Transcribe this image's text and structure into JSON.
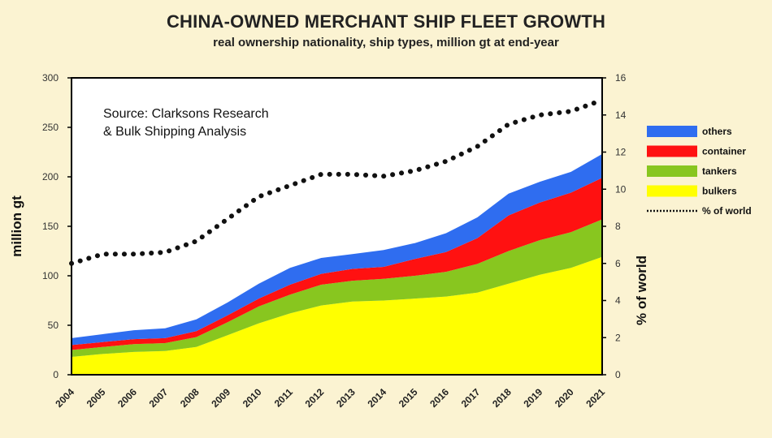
{
  "chart_data": {
    "type": "area",
    "stacked": true,
    "title": "CHINA-OWNED MERCHANT SHIP FLEET GROWTH",
    "subtitle": "real ownership nationality, ship types, million gt at end-year",
    "annotation": [
      "Source: Clarksons Research",
      "& Bulk Shipping Analysis"
    ],
    "ylabel": "million gt",
    "y2label": "% of world",
    "ylim": [
      0,
      300
    ],
    "y2lim": [
      0,
      16
    ],
    "yticks": [
      0,
      50,
      100,
      150,
      200,
      250,
      300
    ],
    "y2ticks": [
      0,
      2,
      4,
      6,
      8,
      10,
      12,
      14,
      16
    ],
    "categories": [
      "2004",
      "2005",
      "2006",
      "2007",
      "2008",
      "2009",
      "2010",
      "2011",
      "2012",
      "2013",
      "2014",
      "2015",
      "2016",
      "2017",
      "2018",
      "2019",
      "2020",
      "2021"
    ],
    "series": [
      {
        "name": "bulkers",
        "color": "#ffff00",
        "values": [
          18,
          21,
          23,
          24,
          28,
          40,
          52,
          62,
          70,
          74,
          75,
          77,
          79,
          83,
          92,
          101,
          108,
          119
        ]
      },
      {
        "name": "tankers",
        "color": "#88c61f",
        "values": [
          7,
          7,
          8,
          8,
          10,
          13,
          17,
          19,
          21,
          21,
          22,
          23,
          25,
          29,
          33,
          35,
          36,
          38
        ]
      },
      {
        "name": "container",
        "color": "#ff1111",
        "values": [
          5,
          5,
          5,
          5,
          6,
          7,
          8,
          10,
          11,
          12,
          12,
          17,
          20,
          26,
          36,
          38,
          40,
          42
        ]
      },
      {
        "name": "others",
        "color": "#2f6df0",
        "values": [
          7,
          8,
          9,
          10,
          12,
          13,
          15,
          17,
          16,
          15,
          17,
          16,
          19,
          21,
          22,
          21,
          21,
          24
        ]
      },
      {
        "name": "% of world",
        "type": "line",
        "axis": "y2",
        "color": "#111111",
        "values": [
          6.0,
          6.5,
          6.5,
          6.6,
          7.2,
          8.4,
          9.6,
          10.2,
          10.8,
          10.8,
          10.7,
          11.0,
          11.5,
          12.3,
          13.5,
          14.0,
          14.2,
          14.8
        ]
      }
    ],
    "legend": {
      "placement": "right",
      "entries": [
        "others",
        "container",
        "tankers",
        "bulkers",
        "% of world"
      ]
    },
    "grid": false
  }
}
